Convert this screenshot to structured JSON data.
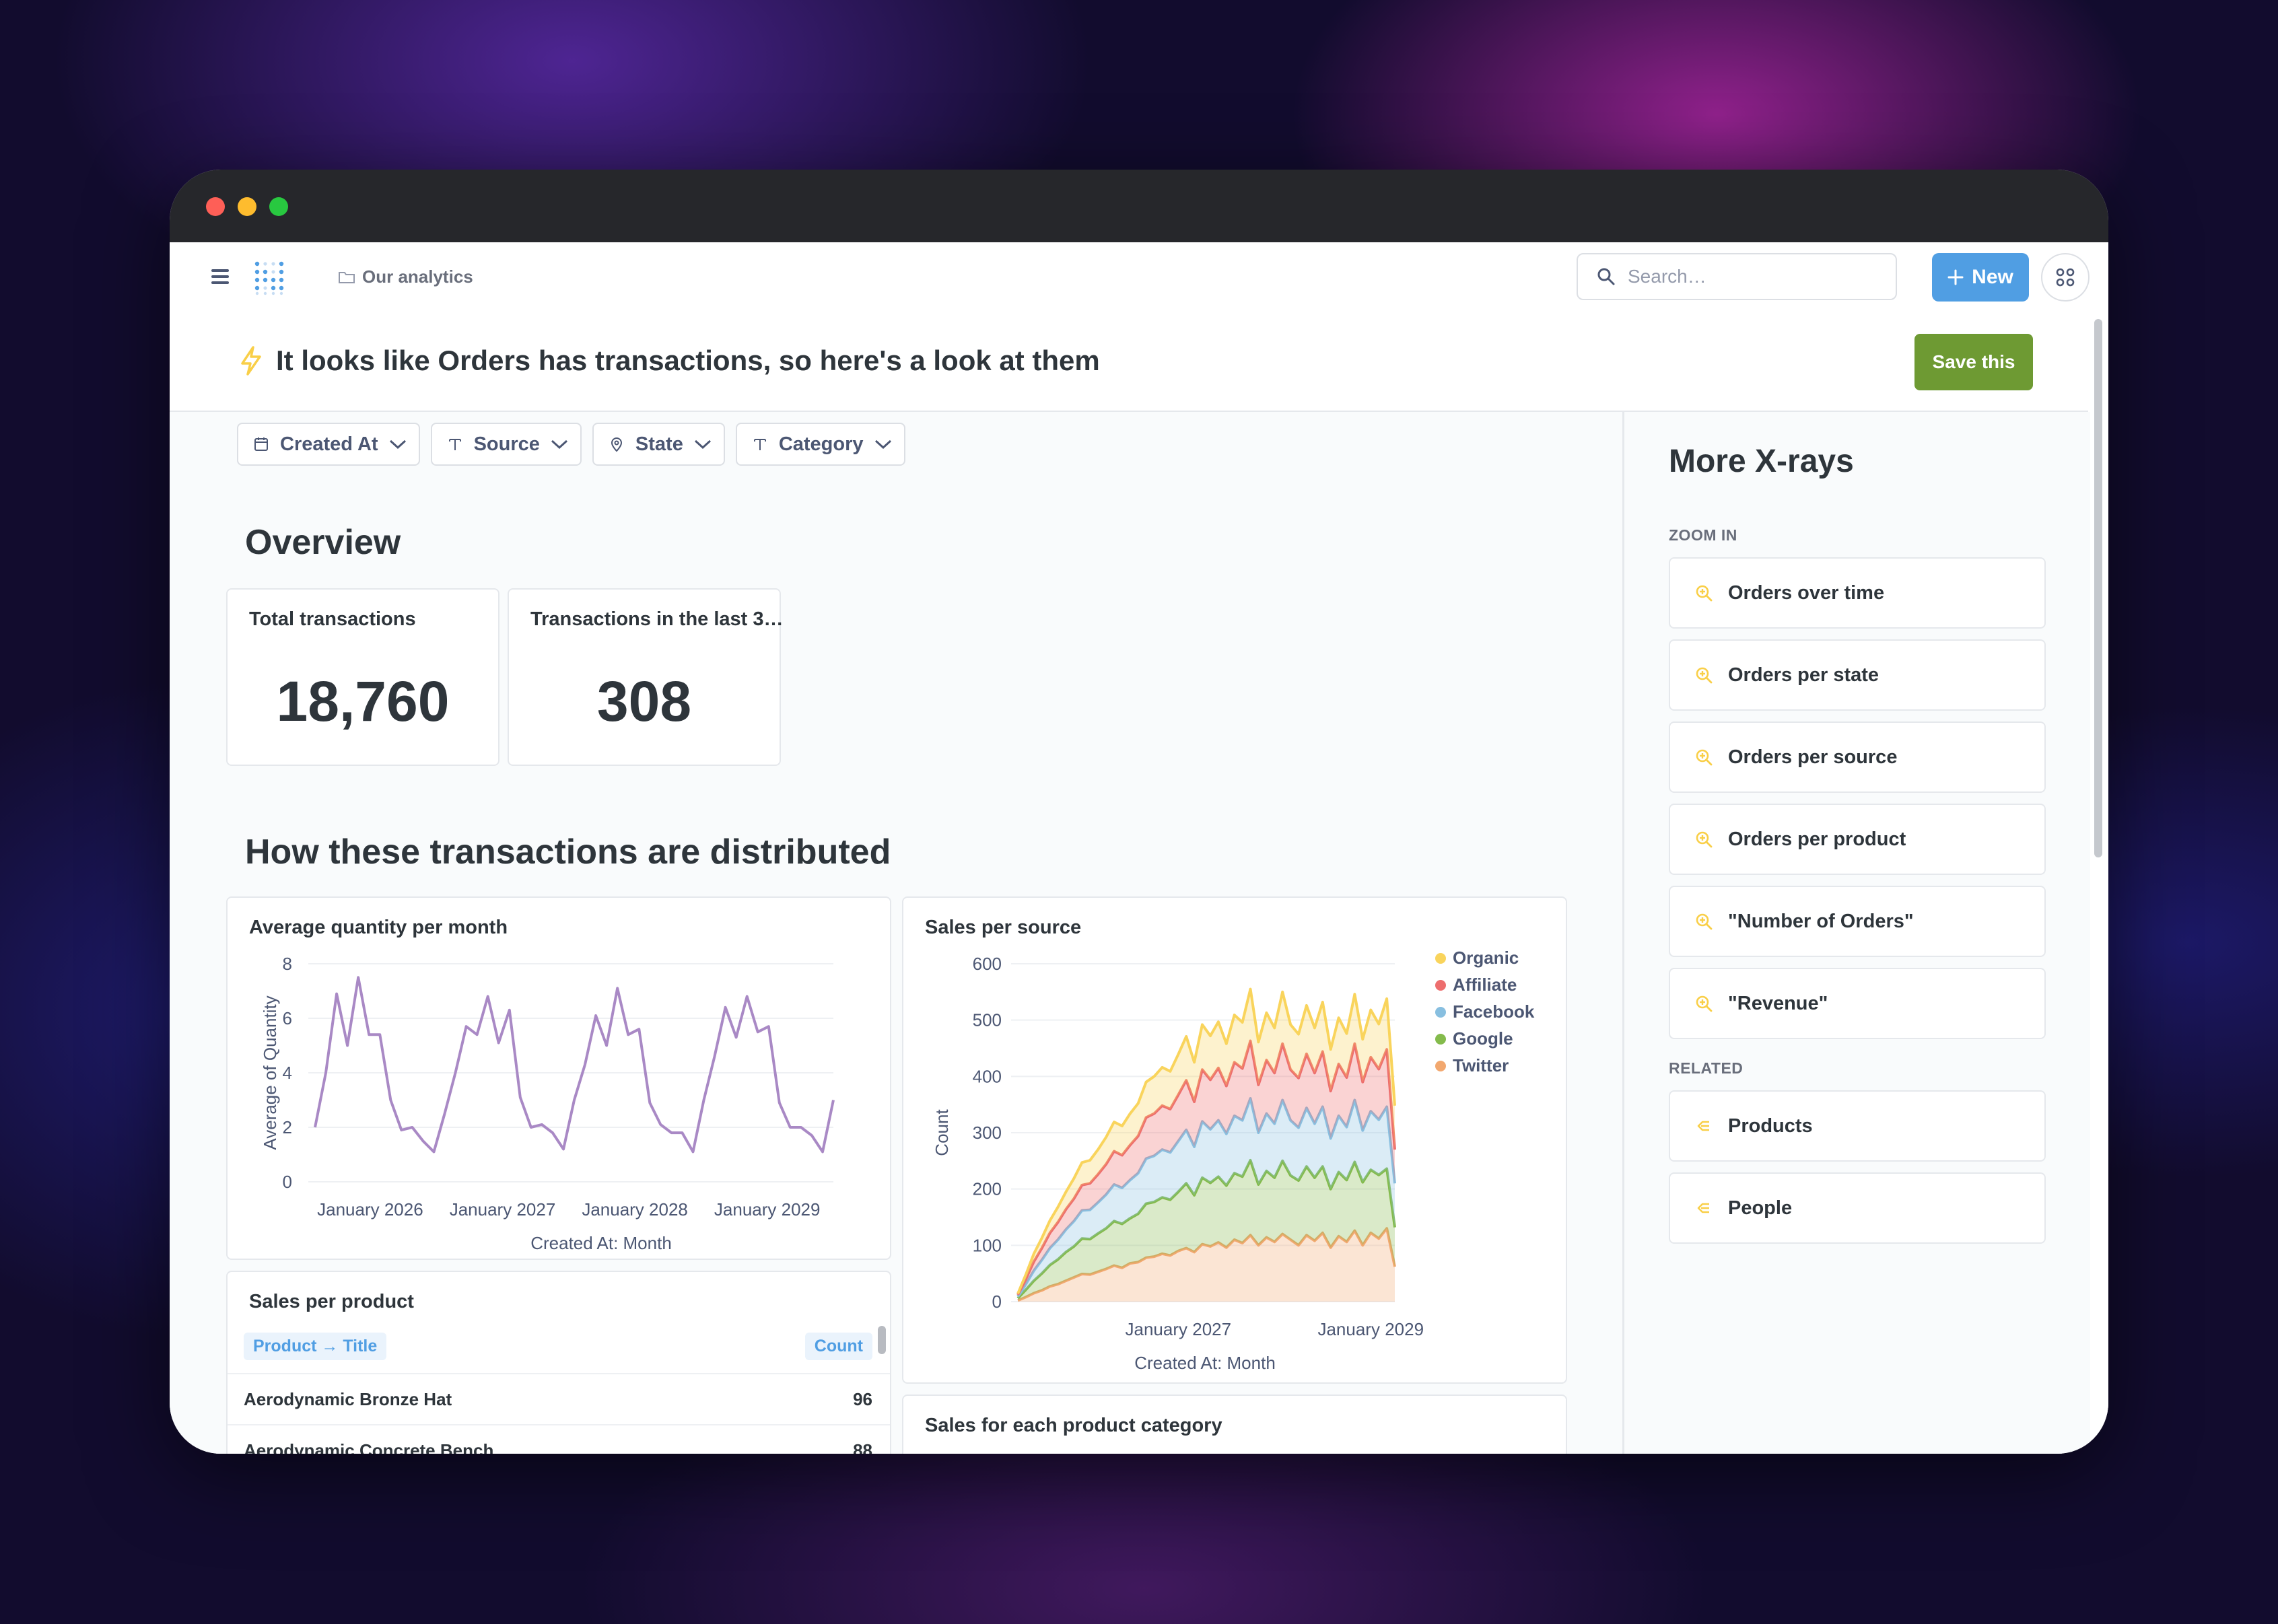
{
  "nav": {
    "breadcrumb": "Our analytics",
    "search_placeholder": "Search…",
    "new_label": "New"
  },
  "header": {
    "title": "It looks like Orders has transactions, so here's a look at them",
    "save_label": "Save this"
  },
  "filters": [
    "Created At",
    "Source",
    "State",
    "Category"
  ],
  "overview": {
    "title": "Overview",
    "cards": [
      {
        "title": "Total transactions",
        "value": "18,760"
      },
      {
        "title": "Transactions in the last 3…",
        "value": "308"
      }
    ]
  },
  "distribution": {
    "title": "How these transactions are distributed"
  },
  "charts": {
    "avg_quantity": {
      "title": "Average quantity per month"
    },
    "sales_per_source": {
      "title": "Sales per source"
    },
    "sales_per_product": {
      "title": "Sales per product"
    },
    "sales_per_category": {
      "title": "Sales for each product category"
    }
  },
  "table": {
    "columns": [
      "Product → Title",
      "Count"
    ],
    "rows": [
      [
        "Aerodynamic Bronze Hat",
        "96"
      ],
      [
        "Aerodynamic Concrete Bench",
        "88"
      ]
    ]
  },
  "sidebar": {
    "title": "More X-rays",
    "zoom_label": "ZOOM IN",
    "zoom_items": [
      "Orders over time",
      "Orders per state",
      "Orders per source",
      "Orders per product",
      "\"Number of Orders\"",
      "\"Revenue\""
    ],
    "related_label": "RELATED",
    "related_items": [
      "Products",
      "People"
    ]
  },
  "colors": {
    "brand": "#509ee3",
    "save": "#6e9a33",
    "line": "#a989c5",
    "organic": "#f9d45c",
    "affiliate": "#ed6e6e",
    "facebook": "#88bfe0",
    "google": "#84bb4c",
    "twitter": "#f2a86f"
  },
  "chart_data": [
    {
      "type": "line",
      "title": "Average quantity per month",
      "xlabel": "Created At: Month",
      "ylabel": "Average of Quantity",
      "ylim": [
        0,
        8
      ],
      "yticks": [
        0,
        2,
        4,
        6,
        8
      ],
      "xticks": [
        "January 2026",
        "January 2027",
        "January 2028",
        "January 2029"
      ],
      "x_start": "2025-08",
      "x_end": "2029-07",
      "series": [
        {
          "values": [
            2.0,
            4.0,
            6.9,
            5.0,
            7.5,
            5.4,
            5.4,
            3.0,
            1.9,
            2.0,
            1.5,
            1.1,
            2.5,
            4.0,
            5.7,
            5.4,
            6.8,
            5.1,
            6.3,
            3.1,
            2.0,
            2.1,
            1.8,
            1.2,
            3.0,
            4.3,
            6.1,
            5.0,
            7.1,
            5.4,
            5.6,
            2.9,
            2.1,
            1.8,
            1.8,
            1.1,
            3.0,
            4.6,
            6.4,
            5.3,
            6.8,
            5.5,
            5.7,
            2.9,
            2.0,
            2.0,
            1.7,
            1.1,
            3.0
          ]
        }
      ]
    },
    {
      "type": "area",
      "stacked": true,
      "title": "Sales per source",
      "xlabel": "Created At: Month",
      "ylabel": "Count",
      "ylim": [
        0,
        600
      ],
      "yticks": [
        0,
        100,
        200,
        300,
        400,
        500,
        600
      ],
      "xticks": [
        "January 2027",
        "January 2029"
      ],
      "x_start": "2025-05",
      "x_end": "2029-04",
      "legend_position": "top-right",
      "series": [
        {
          "name": "Twitter",
          "color": "#f2a86f",
          "values": [
            2,
            8,
            15,
            20,
            27,
            31,
            37,
            43,
            49,
            48,
            53,
            58,
            64,
            60,
            68,
            70,
            78,
            80,
            85,
            82,
            90,
            95,
            88,
            102,
            98,
            105,
            96,
            110,
            104,
            118,
            100,
            114,
            106,
            120,
            110,
            100,
            118,
            108,
            122,
            96,
            116,
            106,
            126,
            100,
            122,
            112,
            130,
            62
          ]
        },
        {
          "name": "Google",
          "color": "#84bb4c",
          "values": [
            4,
            13,
            22,
            30,
            38,
            44,
            51,
            55,
            63,
            63,
            68,
            72,
            79,
            78,
            80,
            86,
            96,
            97,
            100,
            99,
            105,
            115,
            101,
            118,
            113,
            117,
            110,
            118,
            118,
            133,
            108,
            118,
            114,
            130,
            114,
            115,
            122,
            112,
            118,
            104,
            114,
            110,
            122,
            112,
            112,
            113,
            106,
            70
          ]
        },
        {
          "name": "Facebook",
          "color": "#88bfe0",
          "values": [
            3,
            10,
            18,
            24,
            30,
            35,
            40,
            45,
            50,
            52,
            55,
            60,
            65,
            64,
            68,
            72,
            80,
            82,
            85,
            84,
            90,
            95,
            86,
            100,
            95,
            100,
            92,
            102,
            100,
            110,
            92,
            102,
            96,
            108,
            98,
            94,
            104,
            96,
            106,
            90,
            100,
            94,
            110,
            92,
            104,
            98,
            110,
            78
          ]
        },
        {
          "name": "Affiliate",
          "color": "#ed6e6e",
          "values": [
            3,
            9,
            16,
            21,
            27,
            31,
            36,
            40,
            45,
            47,
            50,
            54,
            59,
            58,
            62,
            66,
            73,
            75,
            78,
            77,
            82,
            88,
            80,
            92,
            88,
            93,
            85,
            95,
            92,
            102,
            85,
            95,
            90,
            100,
            90,
            88,
            96,
            90,
            98,
            84,
            92,
            88,
            100,
            86,
            96,
            90,
            102,
            60
          ]
        },
        {
          "name": "Organic",
          "color": "#f9d45c",
          "values": [
            2,
            8,
            14,
            18,
            22,
            27,
            31,
            36,
            40,
            41,
            44,
            48,
            52,
            52,
            56,
            58,
            63,
            66,
            68,
            67,
            72,
            78,
            70,
            80,
            78,
            82,
            75,
            84,
            82,
            92,
            76,
            84,
            80,
            92,
            80,
            78,
            86,
            80,
            88,
            74,
            82,
            78,
            88,
            76,
            84,
            80,
            90,
            78
          ]
        }
      ]
    }
  ]
}
